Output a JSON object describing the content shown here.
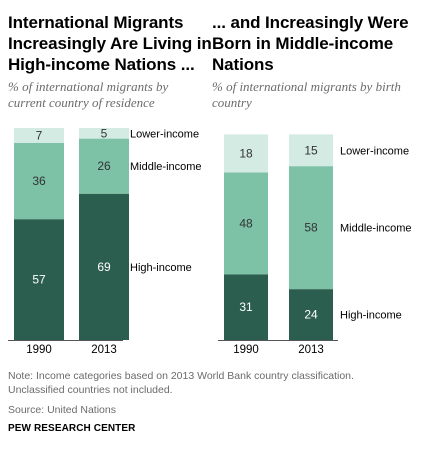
{
  "chart_data": [
    {
      "type": "stacked-bar",
      "title": "International Migrants Increasingly Are Living in High-income Nations ...",
      "subtitle": "% of international migrants by current country of residence",
      "categories": [
        "1990",
        "2013"
      ],
      "series": [
        {
          "name": "High-income",
          "values": [
            57,
            69
          ],
          "color": "#2b5e4e",
          "text_color": "#ffffff"
        },
        {
          "name": "Middle-income",
          "values": [
            36,
            26
          ],
          "color": "#7dc1a6",
          "text_color": "#333333"
        },
        {
          "name": "Lower-income",
          "values": [
            7,
            5
          ],
          "color": "#d3ebe3",
          "text_color": "#333333"
        }
      ]
    },
    {
      "type": "stacked-bar",
      "title": "... and Increasingly Were Born in Middle-income Nations",
      "subtitle": "% of international migrants by birth country",
      "categories": [
        "1990",
        "2013"
      ],
      "series": [
        {
          "name": "High-income",
          "values": [
            31,
            24
          ],
          "color": "#2b5e4e",
          "text_color": "#ffffff"
        },
        {
          "name": "Middle-income",
          "values": [
            48,
            58
          ],
          "color": "#7dc1a6",
          "text_color": "#333333"
        },
        {
          "name": "Lower-income",
          "values": [
            18,
            15
          ],
          "color": "#d3ebe3",
          "text_color": "#333333"
        }
      ]
    }
  ],
  "note": "Note: Income categories based on 2013 World Bank country classification. Unclassified countries not included.",
  "source": "Source: United Nations",
  "brand": "PEW RESEARCH CENTER"
}
